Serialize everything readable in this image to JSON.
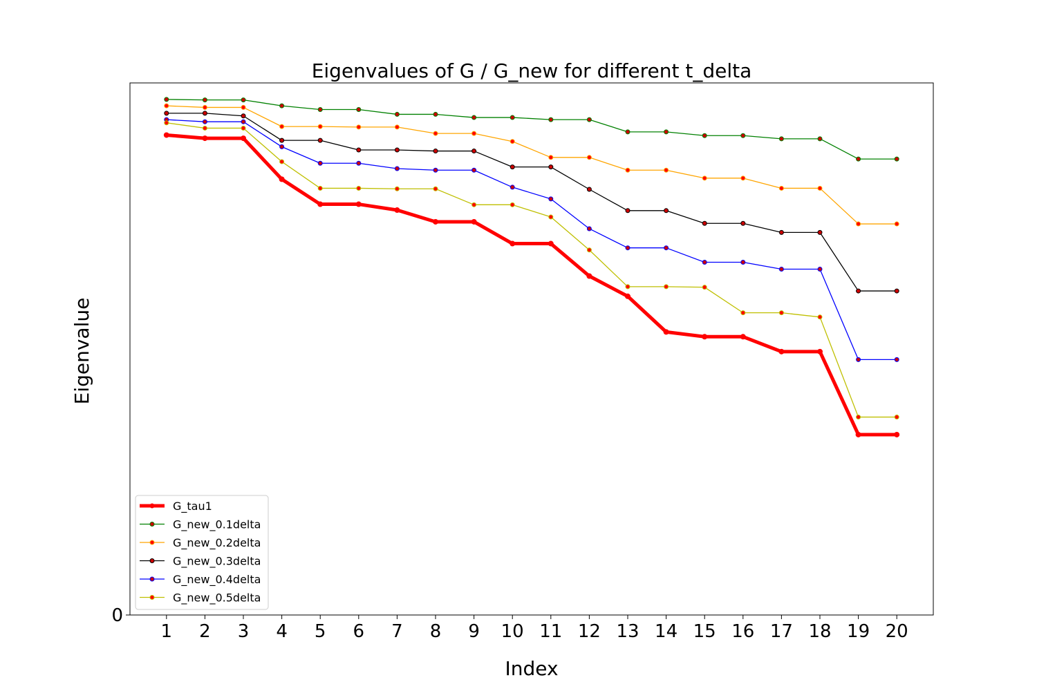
{
  "chart_data": {
    "type": "line",
    "title": "Eigenvalues of G / G_new for different t_delta",
    "xlabel": "Index",
    "ylabel": "Eigenvalue",
    "x": [
      1,
      2,
      3,
      4,
      5,
      6,
      7,
      8,
      9,
      10,
      11,
      12,
      13,
      14,
      15,
      16,
      17,
      18,
      19,
      20
    ],
    "xlim": [
      0.05,
      20.95
    ],
    "ylim": [
      0,
      1.0
    ],
    "ytick_labels": [
      "0"
    ],
    "grid": false,
    "legend_position": "lower-left",
    "series": [
      {
        "name": "G_tau1",
        "color": "#ff0000",
        "marker_color": "#ff0000",
        "values": [
          0.902,
          0.896,
          0.896,
          0.819,
          0.772,
          0.772,
          0.761,
          0.739,
          0.739,
          0.698,
          0.698,
          0.637,
          0.599,
          0.532,
          0.523,
          0.523,
          0.495,
          0.495,
          0.339,
          0.339
        ]
      },
      {
        "name": "G_new_0.1delta",
        "color": "#008000",
        "marker_color": "#cc0000",
        "values": [
          0.969,
          0.968,
          0.968,
          0.957,
          0.95,
          0.95,
          0.941,
          0.941,
          0.935,
          0.935,
          0.931,
          0.931,
          0.908,
          0.908,
          0.901,
          0.901,
          0.895,
          0.895,
          0.857,
          0.857
        ]
      },
      {
        "name": "G_new_0.2delta",
        "color": "#ffa500",
        "marker_color": "#ff0000",
        "values": [
          0.957,
          0.954,
          0.954,
          0.918,
          0.918,
          0.917,
          0.917,
          0.905,
          0.905,
          0.89,
          0.86,
          0.86,
          0.836,
          0.836,
          0.821,
          0.821,
          0.802,
          0.802,
          0.735,
          0.735
        ]
      },
      {
        "name": "G_new_0.3delta",
        "color": "#000000",
        "marker_color": "#cc0000",
        "values": [
          0.943,
          0.943,
          0.938,
          0.892,
          0.892,
          0.874,
          0.874,
          0.872,
          0.872,
          0.842,
          0.842,
          0.8,
          0.76,
          0.76,
          0.736,
          0.736,
          0.719,
          0.719,
          0.609,
          0.609
        ]
      },
      {
        "name": "G_new_0.4delta",
        "color": "#0000ff",
        "marker_color": "#cc0000",
        "values": [
          0.931,
          0.927,
          0.927,
          0.88,
          0.849,
          0.849,
          0.839,
          0.836,
          0.836,
          0.804,
          0.782,
          0.726,
          0.69,
          0.69,
          0.663,
          0.663,
          0.65,
          0.65,
          0.48,
          0.48
        ]
      },
      {
        "name": "G_new_0.5delta",
        "color": "#bfbf00",
        "marker_color": "#ff0000",
        "values": [
          0.925,
          0.915,
          0.915,
          0.852,
          0.802,
          0.802,
          0.801,
          0.801,
          0.771,
          0.771,
          0.748,
          0.686,
          0.617,
          0.617,
          0.616,
          0.568,
          0.568,
          0.56,
          0.372,
          0.372
        ]
      }
    ]
  }
}
